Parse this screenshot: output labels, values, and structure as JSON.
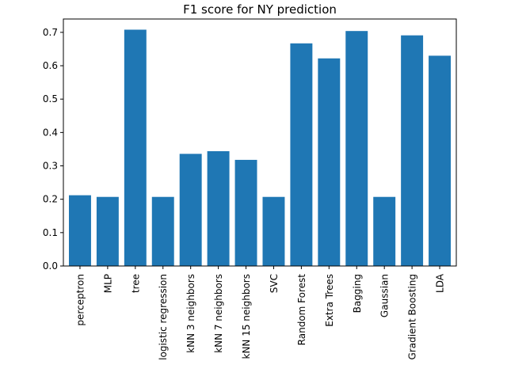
{
  "chart_data": {
    "type": "bar",
    "title": "F1 score for NY prediction",
    "xlabel": "",
    "ylabel": "",
    "categories": [
      "perceptron",
      "MLP",
      "tree",
      "logistic regression",
      "kNN 3 neighbors",
      "kNN 7 neighbors",
      "kNN 15 neighbors",
      "SVC",
      "Random Forest",
      "Extra Trees",
      "Bagging",
      "Gaussian",
      "Gradient Boosting",
      "LDA"
    ],
    "values": [
      0.212,
      0.207,
      0.708,
      0.207,
      0.336,
      0.344,
      0.318,
      0.207,
      0.667,
      0.622,
      0.704,
      0.207,
      0.691,
      0.63
    ],
    "ylim": [
      0,
      0.74
    ],
    "yticks": [
      0.0,
      0.1,
      0.2,
      0.3,
      0.4,
      0.5,
      0.6,
      0.7
    ],
    "ytick_labels": [
      "0.0",
      "0.1",
      "0.2",
      "0.3",
      "0.4",
      "0.5",
      "0.6",
      "0.7"
    ],
    "bar_color": "#1f77b4",
    "grid": false,
    "legend": "none"
  }
}
